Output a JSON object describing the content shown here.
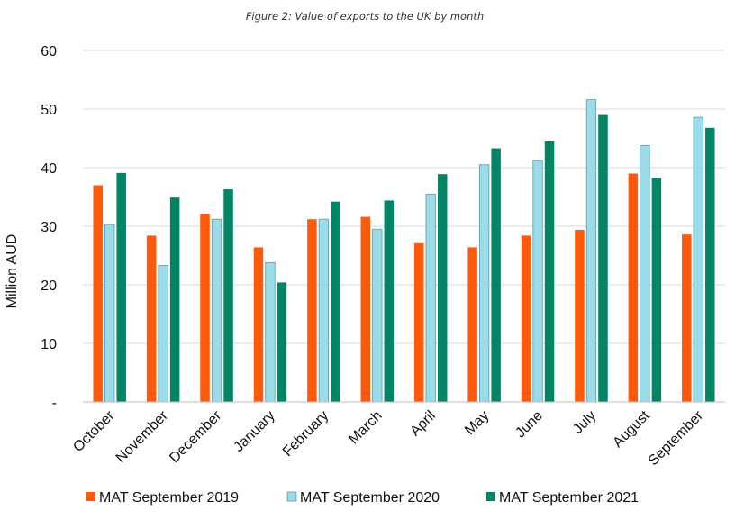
{
  "chart_data": {
    "type": "bar",
    "title": "Figure 2: Value of exports to the UK by month",
    "xlabel": "",
    "ylabel": "Million AUD",
    "ylim": [
      0,
      60
    ],
    "yticks": [
      {
        "value": 0,
        "label": "-"
      },
      {
        "value": 10,
        "label": "10"
      },
      {
        "value": 20,
        "label": "20"
      },
      {
        "value": 30,
        "label": "30"
      },
      {
        "value": 40,
        "label": "40"
      },
      {
        "value": 50,
        "label": "50"
      },
      {
        "value": 60,
        "label": "60"
      }
    ],
    "grid": true,
    "legend_position": "bottom",
    "categories": [
      "October",
      "November",
      "December",
      "January",
      "February",
      "March",
      "April",
      "May",
      "June",
      "July",
      "August",
      "September"
    ],
    "series": [
      {
        "name": "MAT September 2019",
        "color": "#ff5a0a",
        "values": [
          37.0,
          28.4,
          32.1,
          26.4,
          31.2,
          31.6,
          27.1,
          26.4,
          28.4,
          29.4,
          39.0,
          28.6
        ]
      },
      {
        "name": "MAT September 2020",
        "color": "#9adcea",
        "values": [
          30.3,
          23.3,
          31.2,
          23.8,
          31.2,
          29.5,
          35.5,
          40.5,
          41.2,
          51.6,
          43.8,
          48.6
        ]
      },
      {
        "name": "MAT September 2021",
        "color": "#028565",
        "values": [
          39.1,
          34.9,
          36.3,
          20.4,
          34.2,
          34.4,
          38.9,
          43.3,
          44.5,
          49.0,
          38.2,
          46.8
        ]
      }
    ]
  }
}
